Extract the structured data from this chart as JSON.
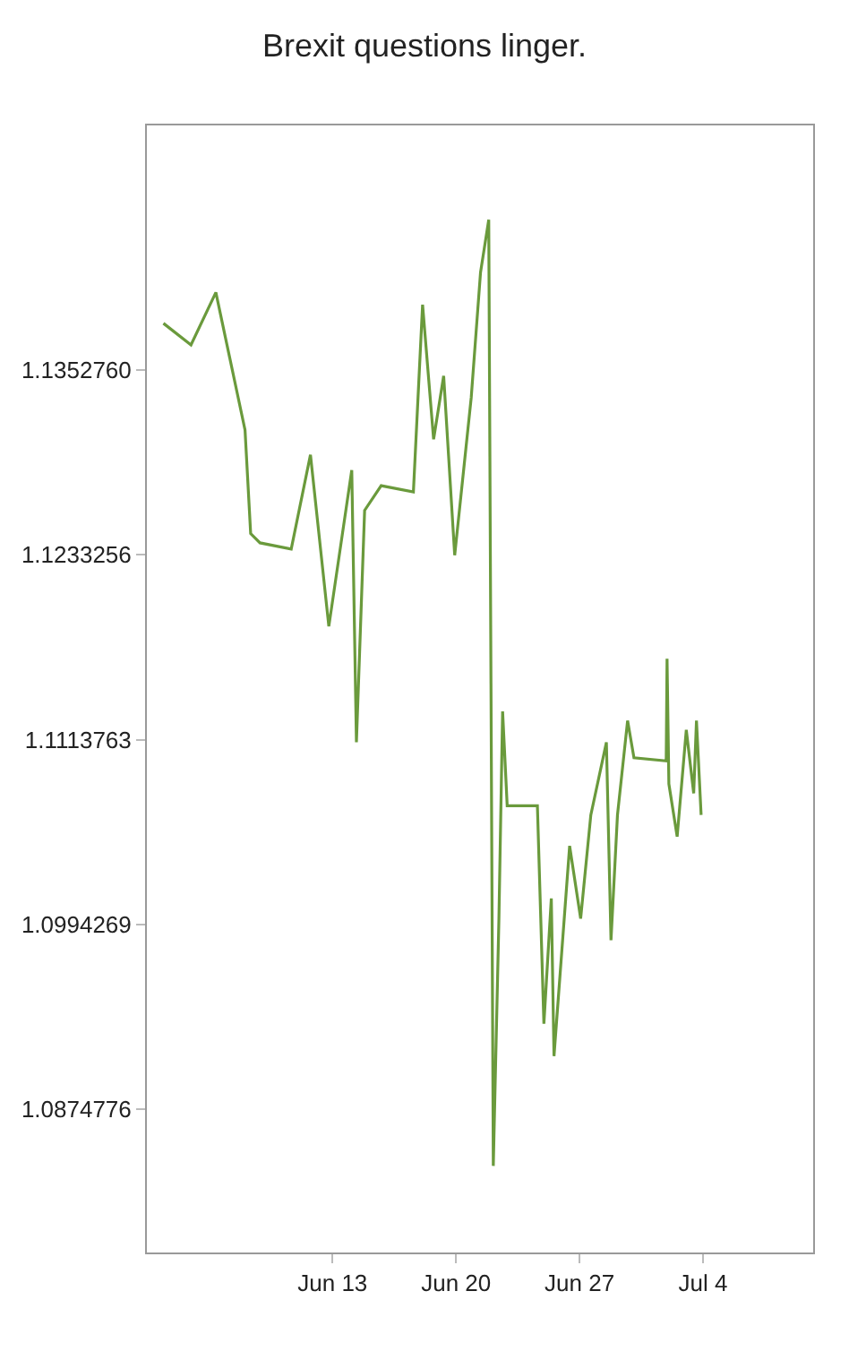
{
  "chart_data": {
    "type": "line",
    "title": "Brexit questions linger.",
    "x": [
      "--06-03T10:00",
      "--06-04T23:30",
      "--06-06T09:20",
      "--06-08T01:00",
      "--06-08T08:40",
      "--06-08T21:20",
      "--06-10T15:50",
      "--06-11T18:00",
      "--06-12T19:00",
      "--06-14T02:10",
      "--06-14T08:30",
      "--06-14T19:40",
      "--06-15T18:10",
      "--06-17T14:00",
      "--06-18T02:30",
      "--06-18T17:30",
      "--06-19T07:10",
      "--06-19T22:10",
      "--06-20T20:40",
      "--06-21T09:20",
      "--06-21T20:30",
      "--06-22T02:40",
      "--06-22T10:20",
      "--06-22T15:20",
      "--06-22T21:35",
      "--06-24T14:40",
      "--06-24T23:30",
      "--06-25T09:35",
      "--06-25T13:15",
      "--06-26T10:30",
      "--06-27T01:30",
      "--06-27T15:20",
      "--06-28T12:30",
      "--06-28T18:45",
      "--06-29T03:35",
      "--06-29T17:20",
      "--06-30T02:00",
      "--07-01T21:50",
      "--07-01T23:00",
      "--07-02T01:30",
      "--07-02T12:45",
      "--07-03T01:10",
      "--07-03T11:15",
      "--07-03T15:00",
      "--07-03T21:20"
    ],
    "series": [
      {
        "color": "#6a9a3c",
        "values": [
          1.1383,
          1.1369,
          1.1403,
          1.1314,
          1.1247,
          1.1241,
          1.1237,
          1.1298,
          1.1187,
          1.1288,
          1.1112,
          1.1262,
          1.1278,
          1.1274,
          1.1395,
          1.1308,
          1.1349,
          1.1233,
          1.1335,
          1.1416,
          1.145,
          1.0838,
          1.0998,
          1.1132,
          1.1071,
          1.1071,
          1.093,
          1.1011,
          1.0909,
          1.1045,
          1.0998,
          1.1065,
          1.1112,
          1.0984,
          1.1065,
          1.1126,
          1.1102,
          1.11,
          1.1166,
          1.1085,
          1.1051,
          1.112,
          1.1079,
          1.1126,
          1.1065
        ]
      }
    ],
    "xlim": [
      "--06-02T11:30",
      "--07-10T05:45"
    ],
    "xticks": [
      {
        "value": "--06-13",
        "label": "Jun 13"
      },
      {
        "value": "--06-20",
        "label": "Jun 20"
      },
      {
        "value": "--06-27",
        "label": "Jun 27"
      },
      {
        "value": "--07-04",
        "label": "Jul 4"
      }
    ],
    "ylim": [
      1.0782,
      1.1511
    ],
    "yticks": [
      {
        "value": 1.135276,
        "label": "1.1352760"
      },
      1.1233256,
      1.1113763,
      1.0994269,
      1.0874776
    ],
    "grid": false,
    "marker": "none",
    "line_style": "solid"
  }
}
